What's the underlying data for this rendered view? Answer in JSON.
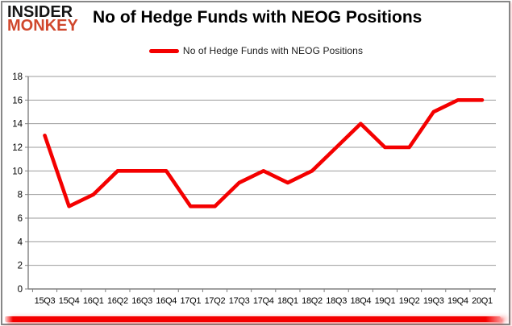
{
  "logo": {
    "line1": "INSIDER",
    "line2": "MONKEY",
    "line1_color": "#161616",
    "line2_color": "#d0472c"
  },
  "header": {
    "title": "No of Hedge Funds with NEOG Positions"
  },
  "legend": {
    "label": "No of Hedge Funds with NEOG Positions",
    "swatch_color": "#f40000"
  },
  "chart_data": {
    "type": "line",
    "title": "No of Hedge Funds with NEOG Positions",
    "categories": [
      "15Q3",
      "15Q4",
      "16Q1",
      "16Q2",
      "16Q3",
      "16Q4",
      "17Q1",
      "17Q2",
      "17Q3",
      "17Q4",
      "18Q1",
      "18Q2",
      "18Q3",
      "18Q4",
      "19Q1",
      "19Q2",
      "19Q3",
      "19Q4",
      "20Q1"
    ],
    "series": [
      {
        "name": "No of Hedge Funds with NEOG Positions",
        "color": "#f40000",
        "values": [
          13,
          7,
          8,
          10,
          10,
          10,
          7,
          7,
          9,
          10,
          9,
          10,
          12,
          14,
          12,
          12,
          15,
          16,
          16
        ]
      }
    ],
    "ylim": [
      0,
      18
    ],
    "yticks": [
      0,
      2,
      4,
      6,
      8,
      10,
      12,
      14,
      16,
      18
    ],
    "xlabel": "",
    "ylabel": "",
    "grid": true,
    "legend_position": "top",
    "grid_color": "#9b9b9b",
    "axis_color": "#808080",
    "tick_label_color": "#000000"
  },
  "footer": {
    "accent_bar_color": "#f40000"
  }
}
